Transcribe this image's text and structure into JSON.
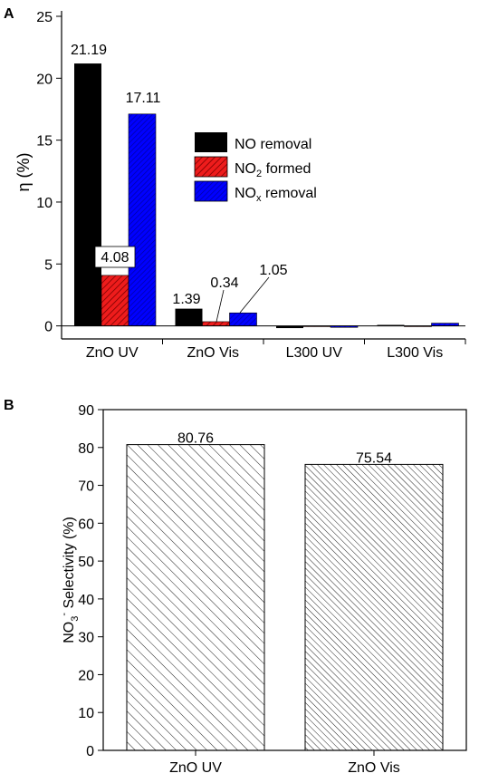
{
  "chart_data": [
    {
      "panel_label": "A",
      "type": "bar",
      "categories": [
        "ZnO UV",
        "ZnO Vis",
        "L300 UV",
        "L300 Vis"
      ],
      "series": [
        {
          "name": "NO removal",
          "color": "#000000",
          "pattern": "solid",
          "values": [
            21.19,
            1.39,
            -0.18,
            0.08
          ]
        },
        {
          "name": "NO₂ formed",
          "color": "#ee1c1c",
          "pattern": "hatch",
          "values": [
            4.08,
            0.34,
            -0.06,
            -0.06
          ]
        },
        {
          "name": "NOₓ removal",
          "color": "#0000ff",
          "pattern": "hatch",
          "values": [
            17.11,
            1.05,
            -0.12,
            0.22
          ]
        }
      ],
      "data_labels": [
        "21.19",
        "4.08",
        "17.11",
        "1.39",
        "0.34",
        "1.05"
      ],
      "ylabel": "η (%)",
      "ylim": [
        -1.2,
        25
      ],
      "yticks": [
        "0",
        "5",
        "10",
        "15",
        "20",
        "25"
      ],
      "legend": {
        "position": "center-right",
        "entries": [
          {
            "main": "NO removal",
            "sub": ""
          },
          {
            "main": "NO",
            "sub": "2",
            "rest": " formed"
          },
          {
            "main": "NO",
            "sub": "x",
            "rest": " removal"
          }
        ]
      }
    },
    {
      "panel_label": "B",
      "type": "bar",
      "categories": [
        "ZnO UV",
        "ZnO Vis"
      ],
      "values": [
        80.76,
        75.54
      ],
      "data_labels": [
        "80.76",
        "75.54"
      ],
      "ylabel": "NO₃⁻ Selectivity (%)",
      "ylabel_parts": {
        "main": "NO",
        "sub": "3",
        "sup": "-",
        "rest": " Selectivity (%)"
      },
      "ylim": [
        0,
        90
      ],
      "yticks": [
        "0",
        "10",
        "20",
        "30",
        "40",
        "50",
        "60",
        "70",
        "80",
        "90"
      ]
    }
  ]
}
